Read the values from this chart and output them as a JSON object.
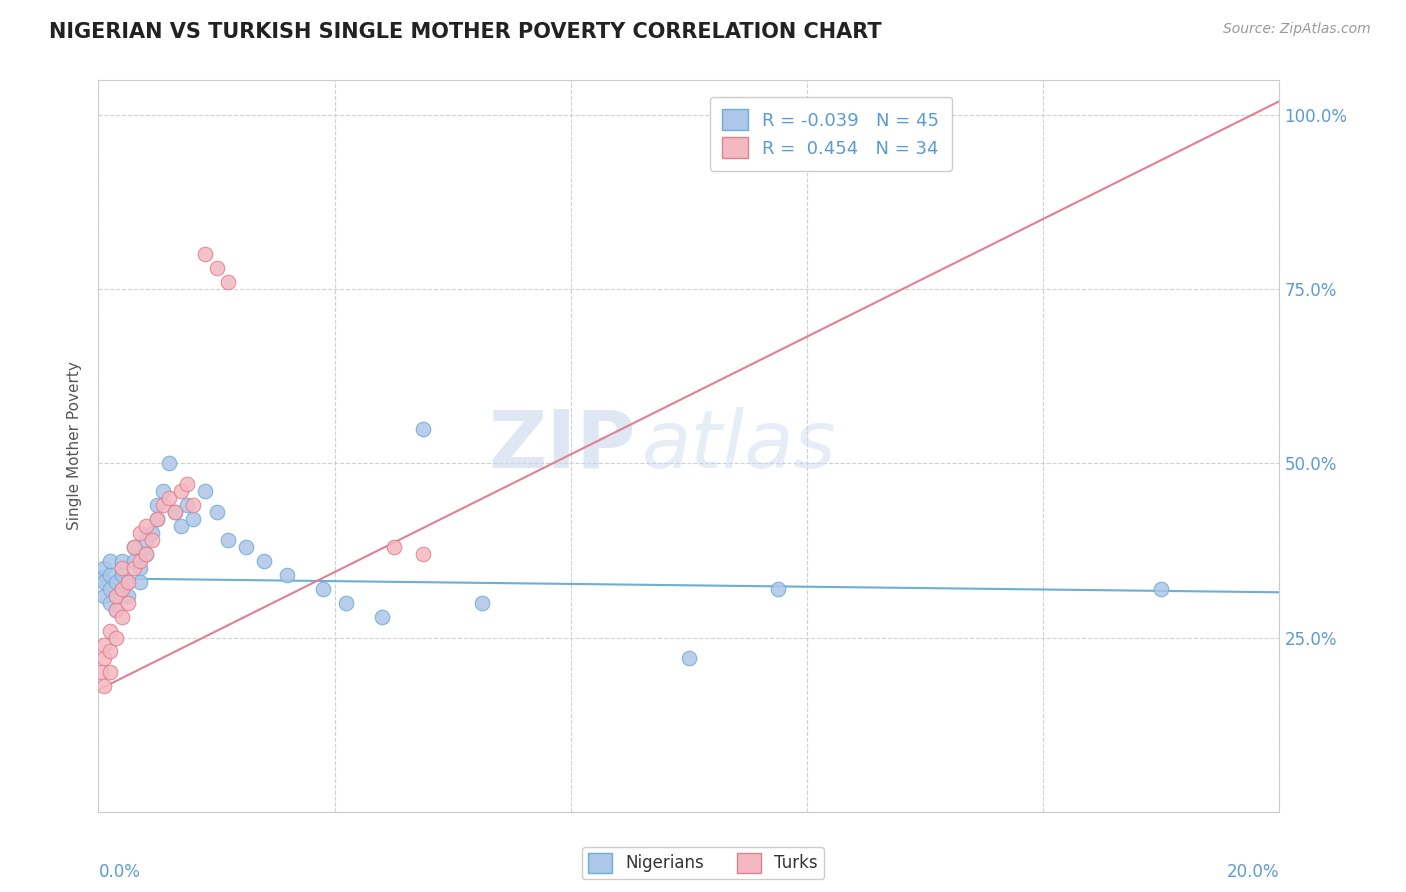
{
  "title": "NIGERIAN VS TURKISH SINGLE MOTHER POVERTY CORRELATION CHART",
  "source": "Source: ZipAtlas.com",
  "ylabel": "Single Mother Poverty",
  "legend_bottom": [
    "Nigerians",
    "Turks"
  ],
  "legend_r_n": [
    {
      "R": "-0.039",
      "N": "45",
      "color": "#aec6e8"
    },
    {
      "R": "0.454",
      "N": "34",
      "color": "#f4b8c1"
    }
  ],
  "nigerian_x": [
    0.0005,
    0.001,
    0.001,
    0.001,
    0.002,
    0.002,
    0.002,
    0.002,
    0.003,
    0.003,
    0.003,
    0.004,
    0.004,
    0.004,
    0.005,
    0.005,
    0.006,
    0.006,
    0.007,
    0.007,
    0.008,
    0.008,
    0.009,
    0.01,
    0.01,
    0.011,
    0.012,
    0.013,
    0.014,
    0.015,
    0.016,
    0.018,
    0.02,
    0.022,
    0.025,
    0.028,
    0.032,
    0.038,
    0.042,
    0.048,
    0.055,
    0.065,
    0.1,
    0.115,
    0.18
  ],
  "nigerian_y": [
    0.335,
    0.31,
    0.33,
    0.35,
    0.3,
    0.32,
    0.34,
    0.36,
    0.29,
    0.31,
    0.33,
    0.32,
    0.34,
    0.36,
    0.31,
    0.33,
    0.36,
    0.38,
    0.33,
    0.35,
    0.37,
    0.39,
    0.4,
    0.42,
    0.44,
    0.46,
    0.5,
    0.43,
    0.41,
    0.44,
    0.42,
    0.46,
    0.43,
    0.39,
    0.38,
    0.36,
    0.34,
    0.32,
    0.3,
    0.28,
    0.55,
    0.3,
    0.22,
    0.32,
    0.32
  ],
  "turkish_x": [
    0.0005,
    0.001,
    0.001,
    0.001,
    0.002,
    0.002,
    0.002,
    0.003,
    0.003,
    0.003,
    0.004,
    0.004,
    0.004,
    0.005,
    0.005,
    0.006,
    0.006,
    0.007,
    0.007,
    0.008,
    0.008,
    0.009,
    0.01,
    0.011,
    0.012,
    0.013,
    0.014,
    0.015,
    0.016,
    0.018,
    0.02,
    0.022,
    0.05,
    0.055
  ],
  "turkish_y": [
    0.2,
    0.18,
    0.22,
    0.24,
    0.2,
    0.23,
    0.26,
    0.25,
    0.29,
    0.31,
    0.28,
    0.32,
    0.35,
    0.3,
    0.33,
    0.35,
    0.38,
    0.36,
    0.4,
    0.37,
    0.41,
    0.39,
    0.42,
    0.44,
    0.45,
    0.43,
    0.46,
    0.47,
    0.44,
    0.8,
    0.78,
    0.76,
    0.38,
    0.37
  ],
  "blue_color": "#aec6e8",
  "blue_edge": "#6baed6",
  "pink_color": "#f4b8c1",
  "pink_edge": "#e08090",
  "trend_blue": "#6baed6",
  "trend_pink": "#e08090",
  "watermark_zip": "ZIP",
  "watermark_atlas": "atlas",
  "bg_color": "#ffffff",
  "grid_color": "#d0d0d0",
  "ylim": [
    0.0,
    1.05
  ],
  "xlim": [
    0.0,
    0.2
  ],
  "yticks": [
    0.0,
    0.25,
    0.5,
    0.75,
    1.0
  ],
  "ytick_labels": [
    "",
    "25.0%",
    "50.0%",
    "75.0%",
    "100.0%"
  ],
  "title_fontsize": 15,
  "source_fontsize": 10
}
